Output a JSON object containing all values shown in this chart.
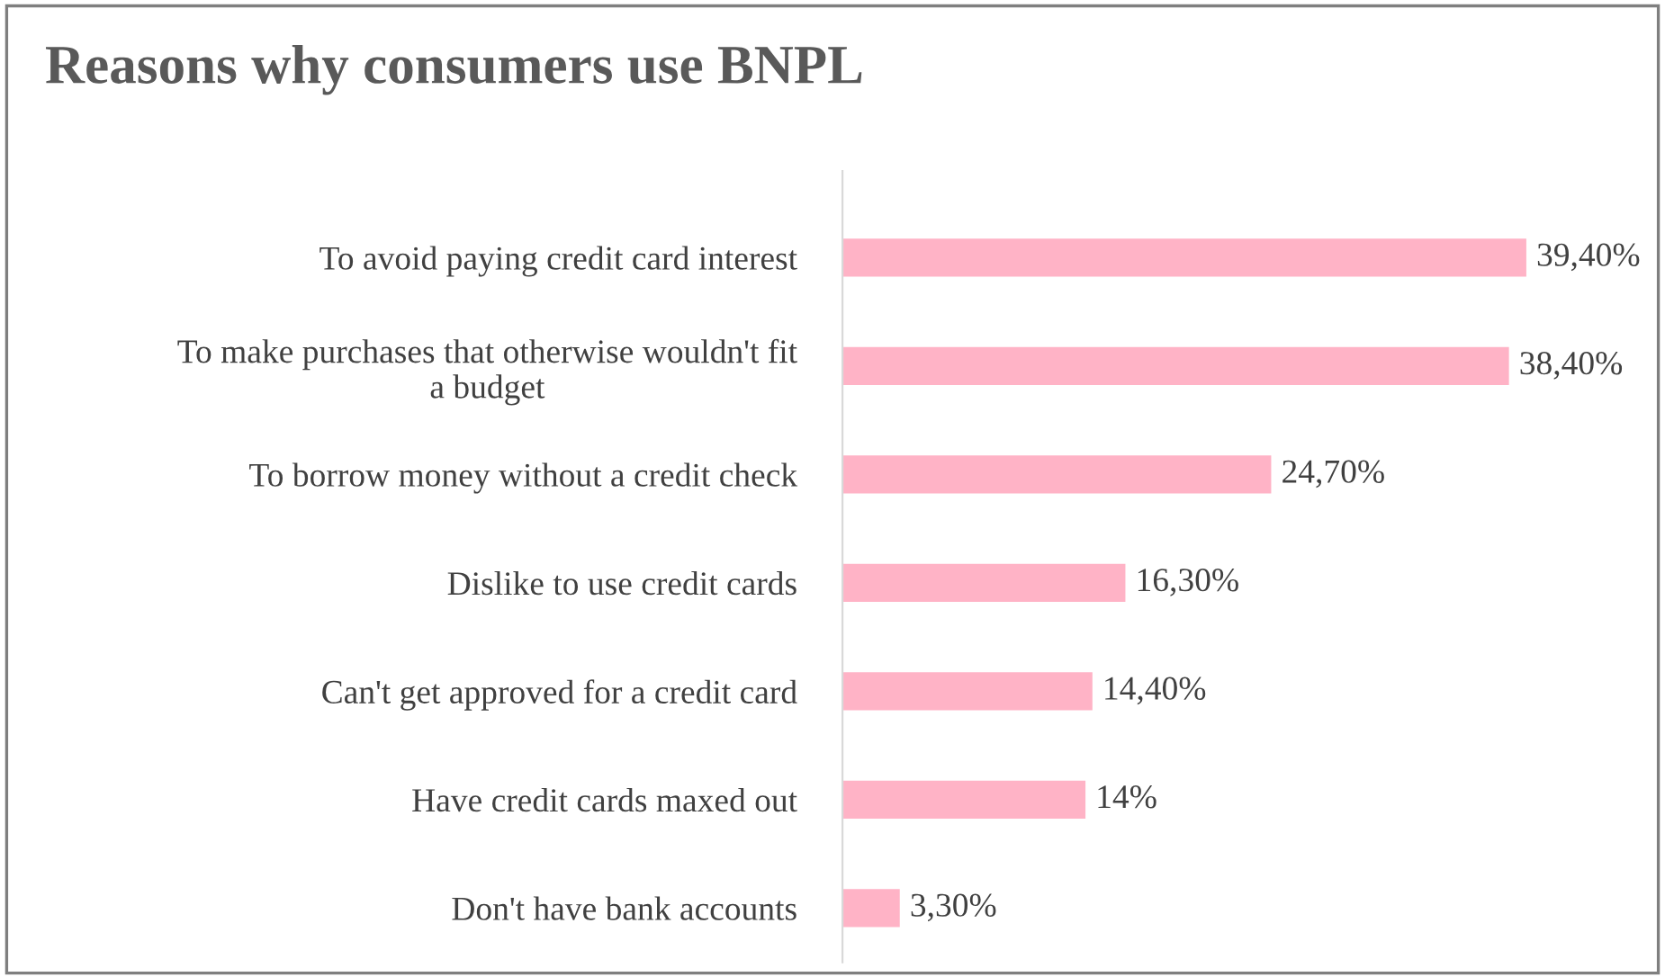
{
  "chart_data": {
    "type": "bar",
    "orientation": "horizontal",
    "title": "Reasons why consumers use BNPL",
    "categories": [
      "To avoid paying credit card interest",
      "To make purchases that otherwise wouldn't fit\na budget",
      "To borrow money without a credit check",
      "Dislike to use credit cards",
      "Can't get approved for a credit card",
      "Have credit cards maxed out",
      "Don't have bank accounts"
    ],
    "values": [
      39.4,
      38.4,
      24.7,
      16.3,
      14.4,
      14,
      3.3
    ],
    "value_labels": [
      "39,40%",
      "38,40%",
      "24,70%",
      "16,30%",
      "14,40%",
      "14%",
      "3,30%"
    ],
    "color": "#ffb3c6",
    "grid": false,
    "legend": false
  }
}
